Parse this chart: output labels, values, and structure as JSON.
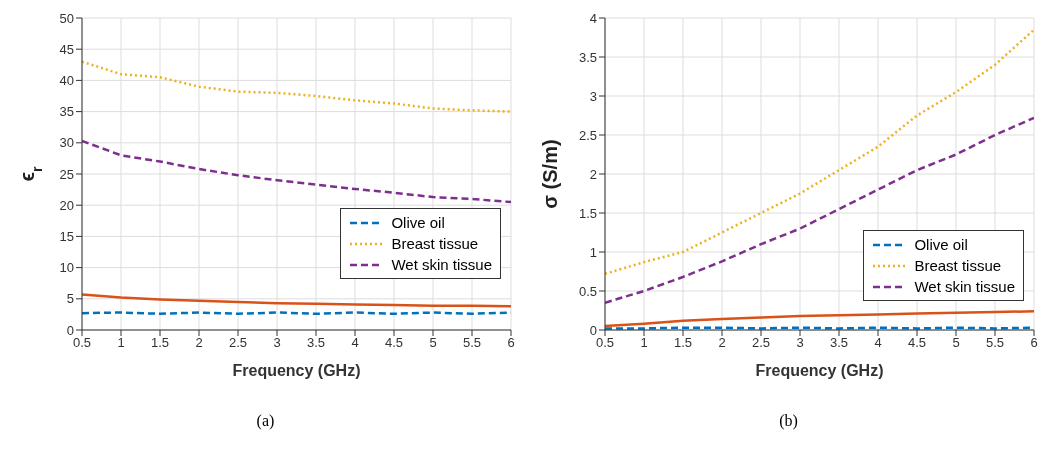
{
  "chart_data": [
    {
      "type": "line",
      "xlabel": "Frequency (GHz)",
      "ylabel": "ϵ$_{r}$",
      "xlim": [
        0.5,
        6
      ],
      "xticks": [
        0.5,
        1,
        1.5,
        2,
        2.5,
        3,
        3.5,
        4,
        4.5,
        5,
        5.5,
        6
      ],
      "ylim": [
        0,
        50
      ],
      "yticks": [
        0,
        5,
        10,
        15,
        20,
        25,
        30,
        35,
        40,
        45,
        50
      ],
      "grid": true,
      "legend": "right",
      "marker": "none",
      "annotations": [
        "(a)"
      ],
      "x": [
        0.5,
        1,
        1.5,
        2,
        2.5,
        3,
        3.5,
        4,
        4.5,
        5,
        5.5,
        6
      ],
      "series": [
        {
          "name": "Olive oil",
          "color": "#0072bd",
          "line_style": "dashed",
          "values": [
            2.7,
            2.8,
            2.6,
            2.8,
            2.6,
            2.8,
            2.6,
            2.8,
            2.6,
            2.8,
            2.6,
            2.8
          ]
        },
        {
          "color": "#d95319",
          "line_style": "solid",
          "values": [
            5.7,
            5.2,
            4.9,
            4.7,
            4.5,
            4.3,
            4.2,
            4.1,
            4.0,
            3.9,
            3.9,
            3.8
          ]
        },
        {
          "name": "Breast tissue",
          "color": "#edb120",
          "line_style": "dotted",
          "values": [
            43,
            41,
            40.5,
            39,
            38.2,
            38,
            37.5,
            36.8,
            36.3,
            35.5,
            35.2,
            35
          ]
        },
        {
          "name": "Wet skin tissue",
          "color": "#7e2f8e",
          "line_style": "dashed",
          "values": [
            30.3,
            28,
            27,
            25.8,
            24.8,
            24,
            23.3,
            22.6,
            22,
            21.3,
            21,
            20.5
          ]
        }
      ]
    },
    {
      "type": "line",
      "xlabel": "Frequency (GHz)",
      "ylabel": "σ (S/m)",
      "xlim": [
        0.5,
        6
      ],
      "xticks": [
        0.5,
        1,
        1.5,
        2,
        2.5,
        3,
        3.5,
        4,
        4.5,
        5,
        5.5,
        6
      ],
      "ylim": [
        0,
        4
      ],
      "yticks": [
        0,
        0.5,
        1,
        1.5,
        2,
        2.5,
        3,
        3.5,
        4
      ],
      "grid": true,
      "legend": "bottom right",
      "marker": "none",
      "annotations": [
        "(b)"
      ],
      "x": [
        0.5,
        1,
        1.5,
        2,
        2.5,
        3,
        3.5,
        4,
        4.5,
        5,
        5.5,
        6
      ],
      "series": [
        {
          "name": "Olive oil",
          "color": "#0072bd",
          "line_style": "dashed",
          "values": [
            0.02,
            0.02,
            0.03,
            0.03,
            0.02,
            0.03,
            0.02,
            0.03,
            0.02,
            0.03,
            0.02,
            0.03
          ]
        },
        {
          "color": "#d95319",
          "line_style": "solid",
          "values": [
            0.05,
            0.08,
            0.12,
            0.14,
            0.16,
            0.18,
            0.19,
            0.2,
            0.21,
            0.22,
            0.23,
            0.24
          ]
        },
        {
          "name": "Breast tissue",
          "color": "#edb120",
          "line_style": "dotted",
          "values": [
            0.72,
            0.87,
            1.0,
            1.25,
            1.5,
            1.75,
            2.05,
            2.35,
            2.75,
            3.05,
            3.4,
            3.85
          ]
        },
        {
          "name": "Wet skin tissue",
          "color": "#7e2f8e",
          "line_style": "dashed",
          "values": [
            0.35,
            0.5,
            0.68,
            0.88,
            1.1,
            1.3,
            1.55,
            1.8,
            2.05,
            2.25,
            2.5,
            2.72
          ]
        }
      ]
    }
  ]
}
